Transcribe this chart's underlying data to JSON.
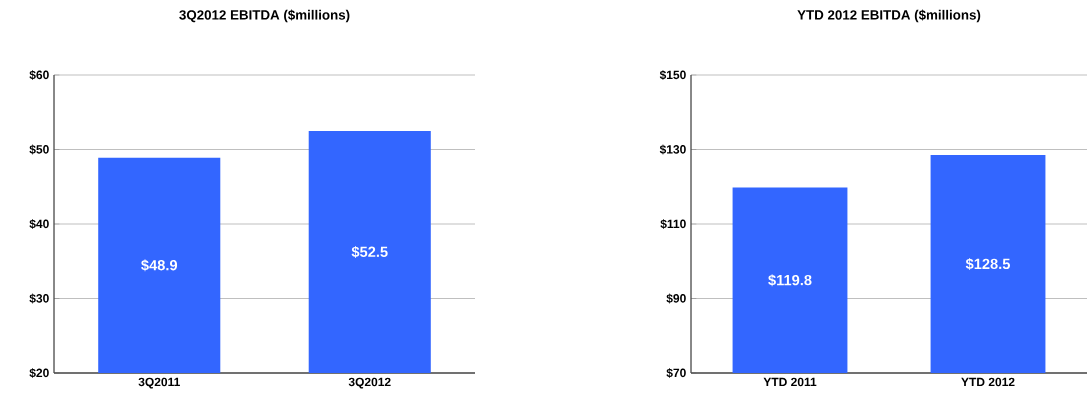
{
  "chart_data": [
    {
      "type": "bar",
      "title": "3Q2012 EBITDA ($millions)",
      "categories": [
        "3Q2011",
        "3Q2012"
      ],
      "values": [
        48.9,
        52.5
      ],
      "value_labels": [
        "$48.9",
        "$52.5"
      ],
      "color": "#3366ff",
      "ylim": [
        20,
        60
      ],
      "yticks": [
        {
          "value": 20,
          "label": "$20"
        },
        {
          "value": 30,
          "label": "$30"
        },
        {
          "value": 40,
          "label": "$40"
        },
        {
          "value": 50,
          "label": "$50"
        },
        {
          "value": 60,
          "label": "$60"
        }
      ],
      "grid": "y"
    },
    {
      "type": "bar",
      "title": "YTD 2012 EBITDA ($millions)",
      "categories": [
        "YTD 2011",
        "YTD 2012"
      ],
      "values": [
        119.8,
        128.5
      ],
      "value_labels": [
        "$119.8",
        "$128.5"
      ],
      "color": "#3366ff",
      "ylim": [
        70,
        150
      ],
      "yticks": [
        {
          "value": 70,
          "label": "$70"
        },
        {
          "value": 90,
          "label": "$90"
        },
        {
          "value": 110,
          "label": "$110"
        },
        {
          "value": 130,
          "label": "$130"
        },
        {
          "value": 150,
          "label": "$150"
        }
      ],
      "grid": "y"
    }
  ]
}
